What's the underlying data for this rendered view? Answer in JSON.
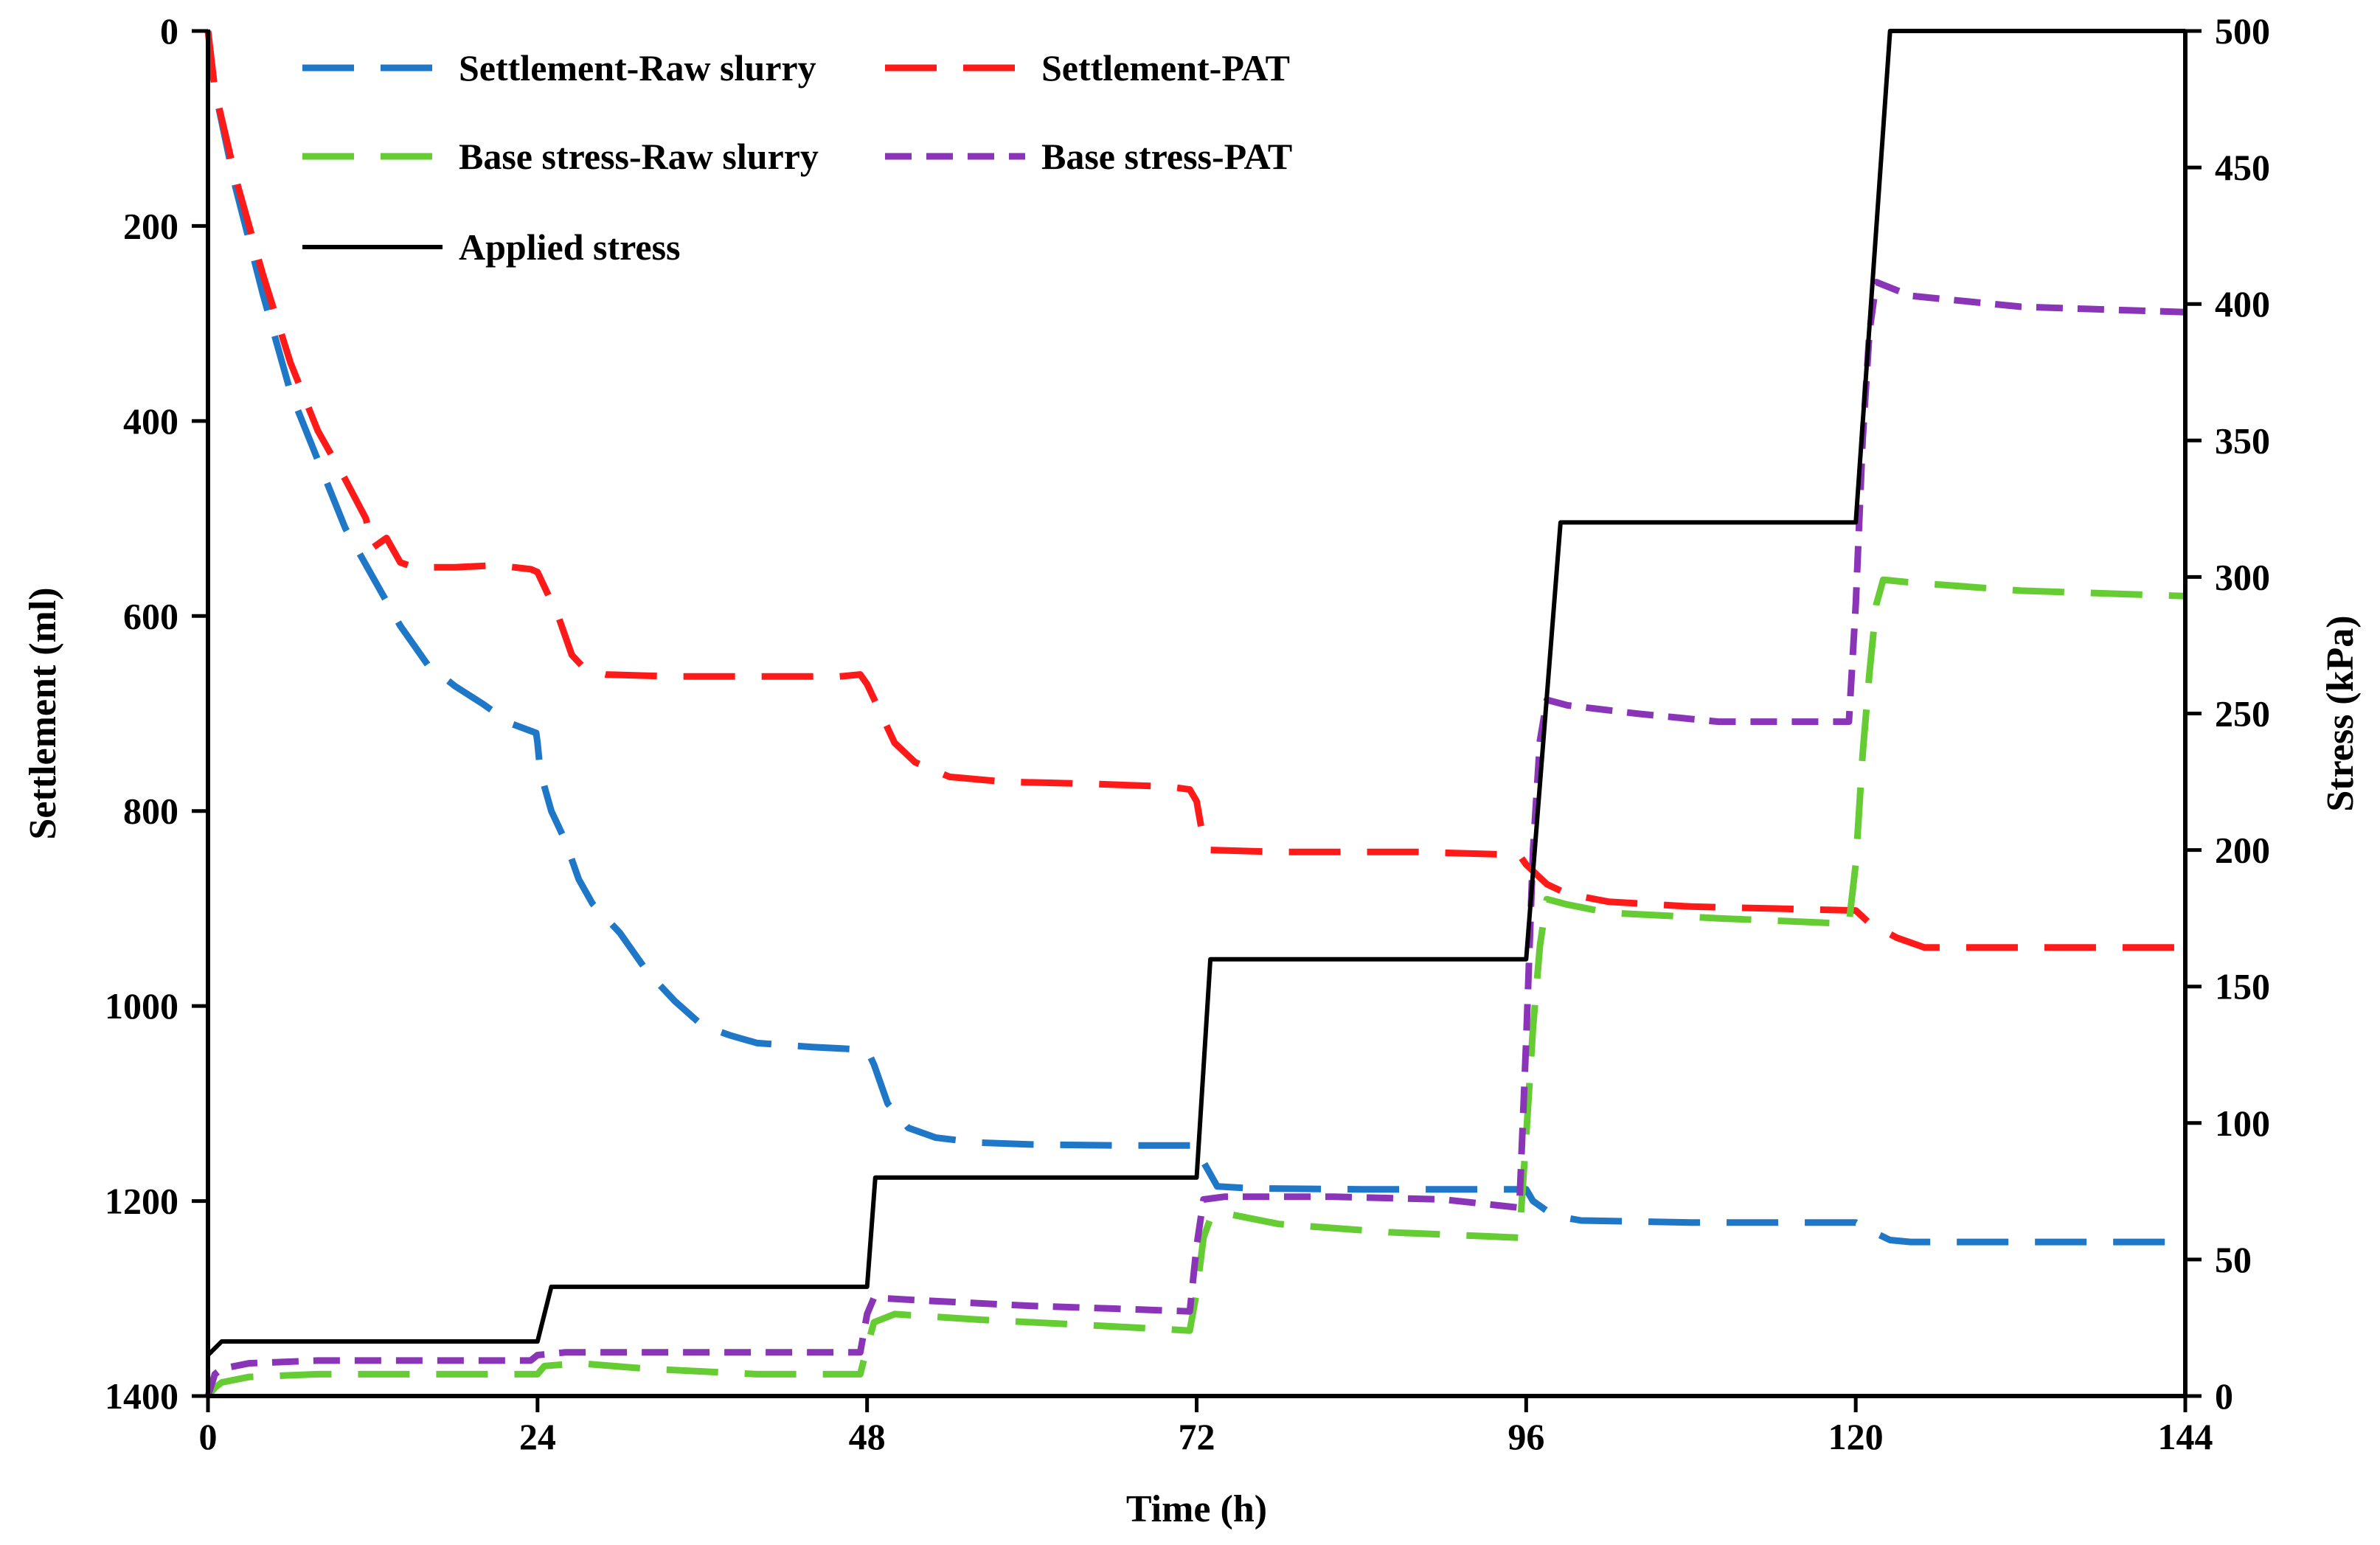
{
  "chart_data": {
    "type": "line",
    "xlabel": "Time (h)",
    "ylabel_left": "Settlement (ml)",
    "ylabel_right": "Stress (kPa)",
    "x_range": [
      0,
      144
    ],
    "y_left_range": [
      0,
      1400
    ],
    "y_left_inverted": true,
    "y_right_range": [
      0,
      500
    ],
    "x_ticks": [
      0,
      24,
      48,
      72,
      96,
      120,
      144
    ],
    "y_left_ticks": [
      0,
      200,
      400,
      600,
      800,
      1000,
      1200,
      1400
    ],
    "y_right_ticks": [
      0,
      50,
      100,
      150,
      200,
      250,
      300,
      350,
      400,
      450,
      500
    ],
    "legend_position": "top-left, inside plot",
    "series": [
      {
        "name": "Settlement-Raw slurry",
        "axis": "left",
        "color": "#1f77c8",
        "dash": "long-dash",
        "points": [
          [
            0,
            0
          ],
          [
            0.5,
            60
          ],
          [
            2,
            160
          ],
          [
            4,
            270
          ],
          [
            6,
            370
          ],
          [
            8,
            440
          ],
          [
            10,
            510
          ],
          [
            12,
            560
          ],
          [
            14,
            610
          ],
          [
            16,
            650
          ],
          [
            18,
            672
          ],
          [
            20,
            690
          ],
          [
            22,
            710
          ],
          [
            23.9,
            720
          ],
          [
            24,
            730
          ],
          [
            24.2,
            760
          ],
          [
            25,
            800
          ],
          [
            26,
            830
          ],
          [
            27,
            870
          ],
          [
            28,
            895
          ],
          [
            30,
            925
          ],
          [
            32,
            965
          ],
          [
            34,
            995
          ],
          [
            36,
            1020
          ],
          [
            38,
            1030
          ],
          [
            40,
            1038
          ],
          [
            44,
            1042
          ],
          [
            48,
            1045
          ],
          [
            48.5,
            1060
          ],
          [
            49.5,
            1100
          ],
          [
            51,
            1125
          ],
          [
            53,
            1135
          ],
          [
            56,
            1140
          ],
          [
            60,
            1142
          ],
          [
            66,
            1143
          ],
          [
            72,
            1143
          ],
          [
            72.5,
            1160
          ],
          [
            73.5,
            1185
          ],
          [
            76,
            1187
          ],
          [
            84,
            1188
          ],
          [
            96,
            1188
          ],
          [
            96.5,
            1200
          ],
          [
            98,
            1215
          ],
          [
            100,
            1220
          ],
          [
            108,
            1222
          ],
          [
            120,
            1222
          ],
          [
            121,
            1230
          ],
          [
            122.5,
            1240
          ],
          [
            124,
            1242
          ],
          [
            132,
            1242
          ],
          [
            144,
            1242
          ]
        ]
      },
      {
        "name": "Settlement-PAT",
        "axis": "left",
        "color": "#ff1a1a",
        "dash": "long-dash",
        "points": [
          [
            0,
            0
          ],
          [
            0.5,
            60
          ],
          [
            2,
            150
          ],
          [
            4,
            250
          ],
          [
            6,
            340
          ],
          [
            8,
            410
          ],
          [
            10,
            460
          ],
          [
            11.5,
            500
          ],
          [
            12,
            530
          ],
          [
            13,
            520
          ],
          [
            14,
            545
          ],
          [
            15,
            550
          ],
          [
            18,
            550
          ],
          [
            21,
            548
          ],
          [
            23.5,
            552
          ],
          [
            24,
            555
          ],
          [
            24.5,
            570
          ],
          [
            25.5,
            600
          ],
          [
            26.5,
            640
          ],
          [
            27.5,
            655
          ],
          [
            29,
            660
          ],
          [
            34,
            662
          ],
          [
            40,
            662
          ],
          [
            46,
            662
          ],
          [
            47.5,
            660
          ],
          [
            48,
            670
          ],
          [
            49,
            700
          ],
          [
            50,
            730
          ],
          [
            51.5,
            750
          ],
          [
            54,
            765
          ],
          [
            58,
            770
          ],
          [
            64,
            772
          ],
          [
            70,
            775
          ],
          [
            71.5,
            778
          ],
          [
            72,
            790
          ],
          [
            72.5,
            830
          ],
          [
            73,
            840
          ],
          [
            78,
            842
          ],
          [
            88,
            842
          ],
          [
            95.5,
            845
          ],
          [
            96,
            855
          ],
          [
            97.5,
            875
          ],
          [
            99,
            885
          ],
          [
            102,
            893
          ],
          [
            108,
            898
          ],
          [
            120,
            902
          ],
          [
            121,
            915
          ],
          [
            123,
            930
          ],
          [
            125,
            940
          ],
          [
            132,
            940
          ],
          [
            144,
            940
          ]
        ]
      },
      {
        "name": "Base stress-Raw slurry",
        "axis": "right",
        "color": "#66cc33",
        "dash": "long-dash",
        "points": [
          [
            0,
            0
          ],
          [
            0.5,
            3
          ],
          [
            1,
            5
          ],
          [
            3,
            7
          ],
          [
            8,
            8
          ],
          [
            16,
            8
          ],
          [
            24,
            8
          ],
          [
            24.5,
            11
          ],
          [
            27,
            12
          ],
          [
            32,
            10
          ],
          [
            40,
            8
          ],
          [
            47.5,
            8
          ],
          [
            48,
            18
          ],
          [
            48.5,
            27
          ],
          [
            50,
            30
          ],
          [
            56,
            28
          ],
          [
            64,
            26
          ],
          [
            71.5,
            24
          ],
          [
            72,
            38
          ],
          [
            72.5,
            58
          ],
          [
            73,
            65
          ],
          [
            74,
            67
          ],
          [
            78,
            63
          ],
          [
            86,
            60
          ],
          [
            95.5,
            58
          ],
          [
            96,
            95
          ],
          [
            96.5,
            135
          ],
          [
            97,
            165
          ],
          [
            97.5,
            182
          ],
          [
            99,
            180
          ],
          [
            102,
            177
          ],
          [
            110,
            175
          ],
          [
            119.5,
            173
          ],
          [
            120,
            195
          ],
          [
            120.5,
            235
          ],
          [
            121,
            265
          ],
          [
            121.5,
            290
          ],
          [
            122,
            299
          ],
          [
            124,
            298
          ],
          [
            132,
            295
          ],
          [
            144,
            293
          ]
        ]
      },
      {
        "name": "Base stress-PAT",
        "axis": "right",
        "color": "#8a35b8",
        "dash": "short-dash",
        "points": [
          [
            0,
            0
          ],
          [
            0.5,
            8
          ],
          [
            1,
            10
          ],
          [
            3,
            12
          ],
          [
            8,
            13
          ],
          [
            16,
            13
          ],
          [
            23.5,
            13
          ],
          [
            24,
            15
          ],
          [
            26,
            16
          ],
          [
            32,
            16
          ],
          [
            40,
            16
          ],
          [
            47.5,
            16
          ],
          [
            48,
            30
          ],
          [
            48.5,
            36
          ],
          [
            52,
            35
          ],
          [
            60,
            33
          ],
          [
            66,
            32
          ],
          [
            71.5,
            31
          ],
          [
            72,
            55
          ],
          [
            72.5,
            72
          ],
          [
            74,
            73
          ],
          [
            82,
            73
          ],
          [
            90,
            72
          ],
          [
            95.5,
            69
          ],
          [
            96,
            130
          ],
          [
            96.5,
            200
          ],
          [
            97,
            240
          ],
          [
            97.5,
            255
          ],
          [
            99,
            253
          ],
          [
            104,
            250
          ],
          [
            110,
            247
          ],
          [
            119.5,
            247
          ],
          [
            120,
            290
          ],
          [
            120.5,
            350
          ],
          [
            121,
            390
          ],
          [
            121.5,
            408
          ],
          [
            124,
            403
          ],
          [
            132,
            399
          ],
          [
            144,
            397
          ]
        ]
      },
      {
        "name": "Applied stress",
        "axis": "right",
        "color": "#000000",
        "dash": "solid",
        "points": [
          [
            0,
            15
          ],
          [
            1,
            20
          ],
          [
            24,
            20
          ],
          [
            25,
            40
          ],
          [
            48,
            40
          ],
          [
            48.6,
            80
          ],
          [
            72,
            80
          ],
          [
            73,
            160
          ],
          [
            96,
            160
          ],
          [
            98.5,
            320
          ],
          [
            120,
            320
          ],
          [
            122.5,
            500
          ],
          [
            144,
            500
          ]
        ]
      }
    ]
  }
}
